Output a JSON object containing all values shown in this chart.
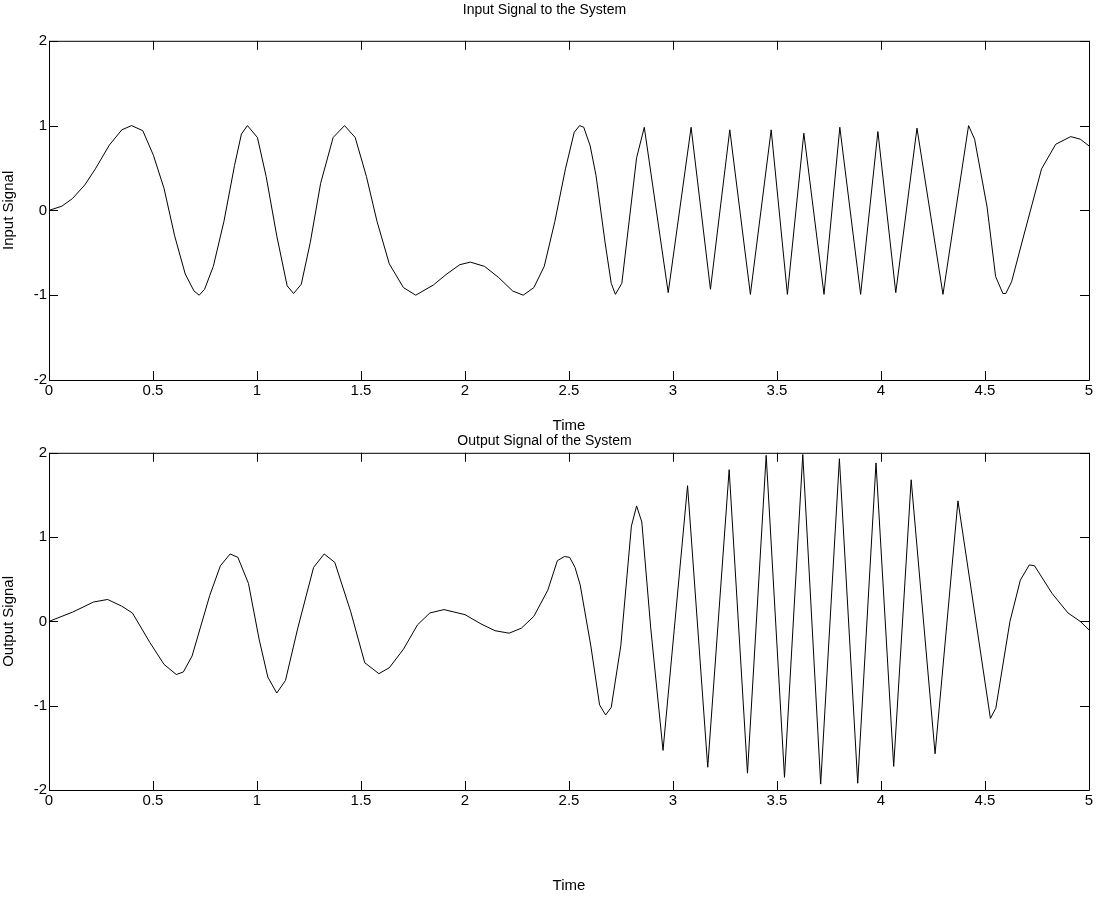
{
  "chart_data": [
    {
      "type": "line",
      "title": "Input Signal to the System",
      "xlabel": "Time",
      "ylabel": "Input Signal",
      "xlim": [
        0,
        5
      ],
      "xticks": [
        0,
        0.5,
        1,
        1.5,
        2,
        2.5,
        3,
        3.5,
        4,
        4.5,
        5
      ],
      "ylim": [
        -2,
        2
      ],
      "yticks": [
        -2,
        -1,
        0,
        1,
        2
      ],
      "grid": false,
      "legend": false,
      "marker": "none",
      "line_style": "solid",
      "series": [
        {
          "color": "#000000",
          "x": [
            0,
            0.062,
            0.113,
            0.172,
            0.223,
            0.29,
            0.35,
            0.397,
            0.451,
            0.502,
            0.553,
            0.604,
            0.655,
            0.697,
            0.722,
            0.748,
            0.79,
            0.841,
            0.892,
            0.925,
            0.954,
            1.002,
            1.044,
            1.095,
            1.145,
            1.176,
            1.213,
            1.256,
            1.306,
            1.366,
            1.421,
            1.472,
            1.526,
            1.577,
            1.636,
            1.704,
            1.763,
            1.848,
            1.907,
            1.975,
            2.026,
            2.094,
            2.161,
            2.229,
            2.28,
            2.331,
            2.381,
            2.432,
            2.483,
            2.525,
            2.551,
            2.571,
            2.602,
            2.63,
            2.673,
            2.703,
            2.723,
            2.754,
            2.825,
            2.862,
            2.977,
            3.087,
            3.18,
            3.273,
            3.372,
            3.472,
            3.55,
            3.629,
            3.726,
            3.802,
            3.902,
            3.985,
            4.071,
            4.173,
            4.298,
            4.421,
            4.45,
            4.51,
            4.551,
            4.586,
            4.6,
            4.628,
            4.687,
            4.772,
            4.84,
            4.912,
            4.958,
            5.0
          ],
          "values": [
            0,
            0.05,
            0.14,
            0.3,
            0.49,
            0.77,
            0.95,
            1.0,
            0.94,
            0.65,
            0.26,
            -0.3,
            -0.75,
            -0.95,
            -1.0,
            -0.93,
            -0.66,
            -0.13,
            0.53,
            0.9,
            1.0,
            0.86,
            0.4,
            -0.3,
            -0.89,
            -0.98,
            -0.87,
            -0.38,
            0.32,
            0.86,
            1.0,
            0.86,
            0.4,
            -0.13,
            -0.63,
            -0.91,
            -1.0,
            -0.88,
            -0.76,
            -0.64,
            -0.61,
            -0.66,
            -0.79,
            -0.95,
            -1.0,
            -0.91,
            -0.66,
            -0.13,
            0.49,
            0.92,
            1.0,
            0.98,
            0.76,
            0.41,
            -0.37,
            -0.86,
            -0.99,
            -0.86,
            0.62,
            0.98,
            -0.97,
            0.98,
            -0.93,
            0.95,
            -0.99,
            0.95,
            -0.99,
            0.91,
            -0.99,
            0.98,
            -0.99,
            0.93,
            -0.97,
            0.97,
            -0.99,
            1.0,
            0.84,
            0.04,
            -0.78,
            -0.98,
            -0.98,
            -0.84,
            -0.29,
            0.49,
            0.78,
            0.87,
            0.84,
            0.76
          ]
        }
      ]
    },
    {
      "type": "line",
      "title": "Output Signal of the System",
      "xlabel": "Time",
      "ylabel": "Output Signal",
      "xlim": [
        0,
        5
      ],
      "xticks": [
        0,
        0.5,
        1,
        1.5,
        2,
        2.5,
        3,
        3.5,
        4,
        4.5,
        5
      ],
      "ylim": [
        -2,
        2
      ],
      "yticks": [
        -2,
        -1,
        0,
        1,
        2
      ],
      "grid": false,
      "legend": false,
      "marker": "none",
      "line_style": "solid",
      "series": [
        {
          "color": "#000000",
          "x": [
            0,
            0.062,
            0.113,
            0.164,
            0.214,
            0.282,
            0.35,
            0.401,
            0.485,
            0.553,
            0.612,
            0.646,
            0.688,
            0.773,
            0.824,
            0.871,
            0.908,
            0.959,
            1.01,
            1.052,
            1.095,
            1.137,
            1.196,
            1.272,
            1.323,
            1.374,
            1.45,
            1.518,
            1.586,
            1.636,
            1.704,
            1.772,
            1.831,
            1.899,
            2.0,
            2.077,
            2.144,
            2.212,
            2.271,
            2.331,
            2.398,
            2.444,
            2.478,
            2.503,
            2.529,
            2.554,
            2.605,
            2.647,
            2.676,
            2.703,
            2.749,
            2.8,
            2.825,
            2.85,
            2.893,
            2.952,
            3.07,
            3.167,
            3.27,
            3.358,
            3.448,
            3.536,
            3.624,
            3.71,
            3.8,
            3.888,
            3.976,
            4.061,
            4.145,
            4.26,
            4.37,
            4.526,
            4.552,
            4.62,
            4.67,
            4.713,
            4.738,
            4.823,
            4.899,
            4.958,
            5.0
          ],
          "values": [
            0,
            0.06,
            0.11,
            0.17,
            0.23,
            0.26,
            0.18,
            0.1,
            -0.25,
            -0.51,
            -0.63,
            -0.6,
            -0.41,
            0.31,
            0.66,
            0.8,
            0.76,
            0.45,
            -0.21,
            -0.66,
            -0.85,
            -0.7,
            -0.08,
            0.64,
            0.8,
            0.7,
            0.12,
            -0.49,
            -0.62,
            -0.55,
            -0.33,
            -0.04,
            0.1,
            0.14,
            0.08,
            -0.03,
            -0.11,
            -0.14,
            -0.08,
            0.06,
            0.37,
            0.72,
            0.77,
            0.76,
            0.64,
            0.43,
            -0.29,
            -0.99,
            -1.11,
            -1.02,
            -0.29,
            1.13,
            1.37,
            1.18,
            -0.08,
            -1.53,
            1.61,
            -1.73,
            1.8,
            -1.8,
            1.97,
            -1.85,
            1.98,
            -1.93,
            1.93,
            -1.92,
            1.88,
            -1.72,
            1.68,
            -1.57,
            1.43,
            -1.15,
            -1.03,
            0,
            0.49,
            0.67,
            0.66,
            0.33,
            0.1,
            0,
            -0.1
          ]
        }
      ]
    }
  ]
}
